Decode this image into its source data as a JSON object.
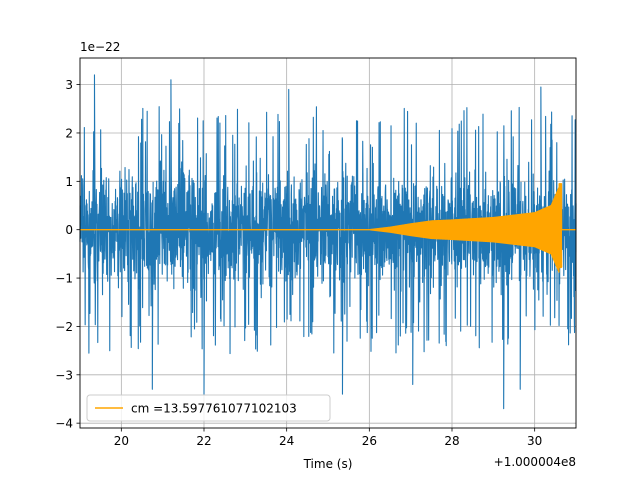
{
  "chart_data": {
    "type": "line",
    "title": "",
    "xlabel": "Time (s)",
    "ylabel": "",
    "x_offset_label": "+1.000004e8",
    "y_scale_label": "1e−22",
    "xlim": [
      19,
      31
    ],
    "ylim": [
      -4.1,
      3.55
    ],
    "x_ticks": [
      20,
      22,
      24,
      26,
      28,
      30
    ],
    "x_tick_labels": [
      "20",
      "22",
      "24",
      "26",
      "28",
      "30"
    ],
    "y_ticks": [
      -4,
      -3,
      -2,
      -1,
      0,
      1,
      2,
      3
    ],
    "y_tick_labels": [
      "−4",
      "−3",
      "−2",
      "−1",
      "0",
      "1",
      "2",
      "3"
    ],
    "grid": true,
    "legend_placement": "lower-left",
    "series": [
      {
        "name": "",
        "color": "#1f77b4",
        "kind": "noise",
        "t_start": 19,
        "t_end": 31,
        "typical_envelope": 1.9,
        "extreme_peaks": [
          {
            "x": 19.35,
            "y": 3.2
          },
          {
            "x": 21.2,
            "y": 3.1
          },
          {
            "x": 20.75,
            "y": -3.3
          },
          {
            "x": 22.0,
            "y": -3.4
          },
          {
            "x": 24.05,
            "y": 2.9
          },
          {
            "x": 25.35,
            "y": -3.4
          },
          {
            "x": 27.05,
            "y": -3.2
          },
          {
            "x": 29.25,
            "y": -3.7
          },
          {
            "x": 30.15,
            "y": 2.95
          },
          {
            "x": 29.65,
            "y": -3.3
          }
        ]
      },
      {
        "name": "cm =13.597761077102103",
        "color": "#ffa500",
        "kind": "chirp",
        "t_start": 19,
        "t_merger": 30.65,
        "t_end": 31,
        "envelope": [
          {
            "x": 19.0,
            "y": 0.0
          },
          {
            "x": 26.0,
            "y": 0.0
          },
          {
            "x": 26.5,
            "y": 0.05
          },
          {
            "x": 27.0,
            "y": 0.12
          },
          {
            "x": 27.5,
            "y": 0.18
          },
          {
            "x": 28.0,
            "y": 0.2
          },
          {
            "x": 29.0,
            "y": 0.25
          },
          {
            "x": 30.0,
            "y": 0.35
          },
          {
            "x": 30.4,
            "y": 0.5
          },
          {
            "x": 30.6,
            "y": 0.9
          },
          {
            "x": 30.65,
            "y": 0.0
          },
          {
            "x": 31.0,
            "y": 0.0
          }
        ],
        "peak_max": 0.95,
        "peak_min": -0.78
      }
    ]
  }
}
